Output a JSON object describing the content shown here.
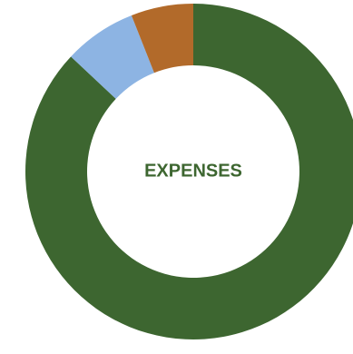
{
  "chart_data": {
    "type": "pie",
    "variant": "donut",
    "center_label": "EXPENSES",
    "slices": [
      {
        "value": 87.0,
        "color": "#3d6630"
      },
      {
        "value": 7.0,
        "color": "#8db4e3"
      },
      {
        "value": 6.0,
        "color": "#b26a2a"
      }
    ]
  },
  "colors": {
    "label": "#3d6630",
    "background": "#ffffff"
  }
}
